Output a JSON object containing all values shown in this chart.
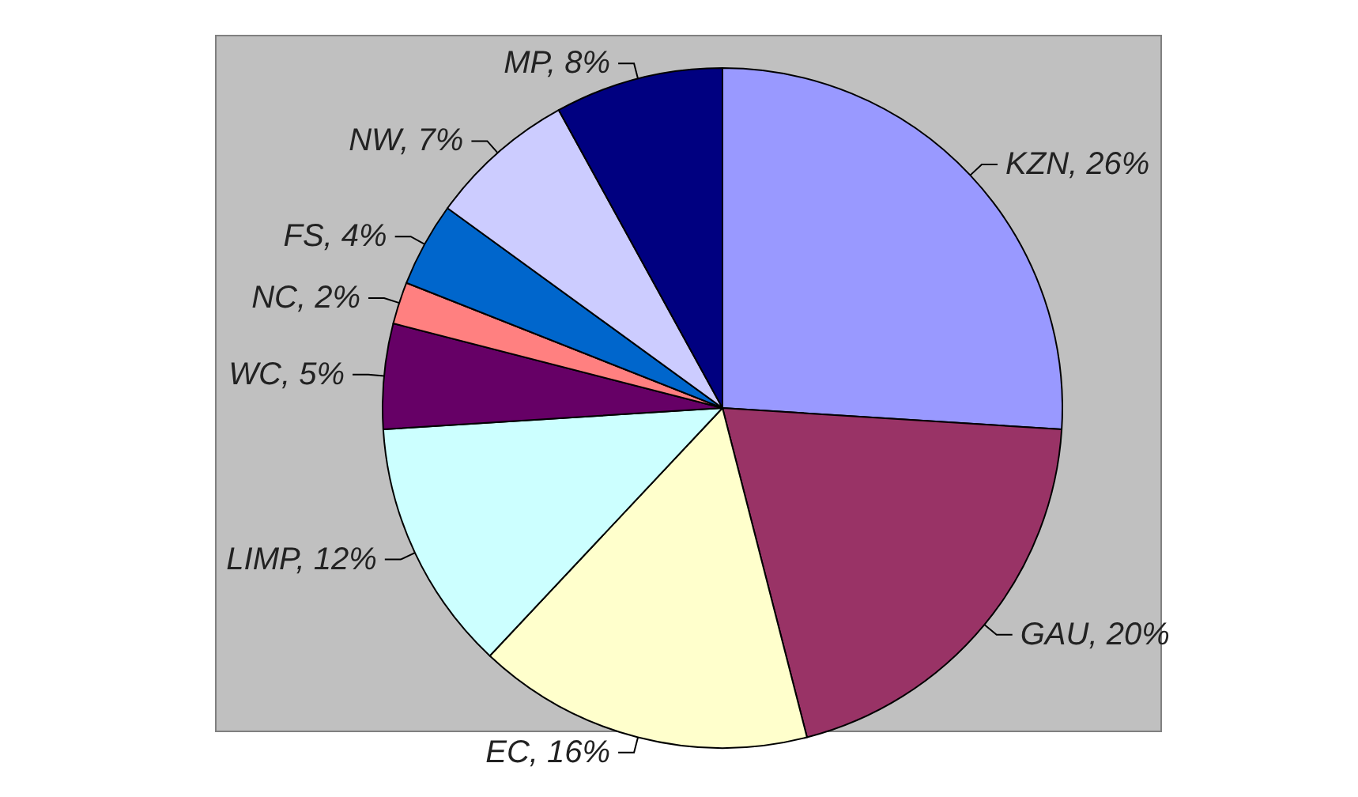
{
  "chart_data": {
    "type": "pie",
    "categories": [
      "KZN",
      "GAU",
      "EC",
      "LIMP",
      "WC",
      "NC",
      "FS",
      "NW",
      "MP"
    ],
    "values": [
      26,
      20,
      16,
      12,
      5,
      2,
      4,
      7,
      8
    ],
    "value_labels": [
      "26%",
      "20%",
      "16%",
      "12%",
      "5%",
      "2%",
      "4%",
      "7%",
      "8%"
    ],
    "colors": [
      "#9999ff",
      "#993366",
      "#ffffcc",
      "#ccffff",
      "#660066",
      "#ff8080",
      "#0066cc",
      "#ccccff",
      "#000080"
    ],
    "legend": false
  }
}
